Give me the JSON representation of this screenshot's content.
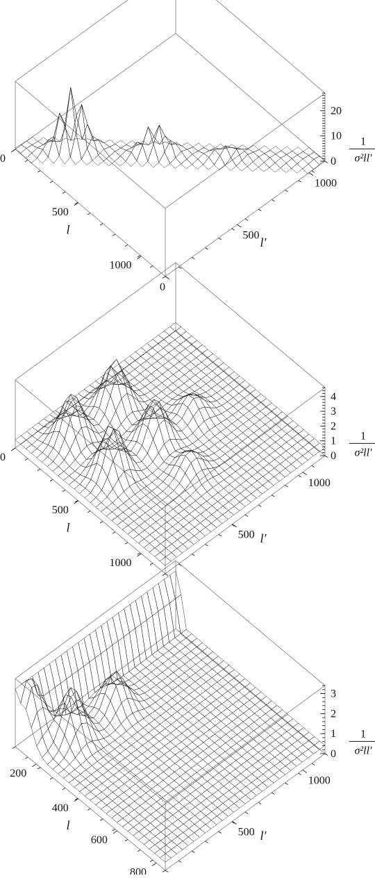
{
  "chart_data": [
    {
      "type": "surface",
      "x_axis": {
        "label": "l",
        "ticks": [
          "0",
          "500",
          "1000"
        ]
      },
      "y_axis": {
        "label": "l′",
        "ticks": [
          "0",
          "500",
          "1000"
        ]
      },
      "z_axis": {
        "label_num": "1",
        "label_den": "σ²ll′",
        "ticks": [
          "0",
          "10",
          "20"
        ],
        "zlim": [
          0,
          27
        ]
      },
      "peaks": [
        {
          "l": 220,
          "l_prime": 220,
          "value": 25
        },
        {
          "l": 540,
          "l_prime": 540,
          "value": 12
        },
        {
          "l": 820,
          "l_prime": 820,
          "value": 4
        }
      ]
    },
    {
      "type": "surface",
      "x_axis": {
        "label": "l",
        "ticks": [
          "0",
          "500",
          "1000"
        ]
      },
      "y_axis": {
        "label": "l′",
        "ticks": [
          "500",
          "1000"
        ]
      },
      "z_axis": {
        "label_num": "1",
        "label_den": "σ²ll′",
        "ticks": [
          "0",
          "1",
          "2",
          "3",
          "4"
        ],
        "zlim": [
          0,
          4.6
        ]
      },
      "peaks": [
        {
          "l": 220,
          "l_prime": 220,
          "value": 3.2
        },
        {
          "l": 540,
          "l_prime": 220,
          "value": 3.4
        },
        {
          "l": 220,
          "l_prime": 540,
          "value": 3.4
        },
        {
          "l": 540,
          "l_prime": 540,
          "value": 3.0
        },
        {
          "l": 820,
          "l_prime": 540,
          "value": 1.4
        },
        {
          "l": 540,
          "l_prime": 820,
          "value": 1.4
        }
      ]
    },
    {
      "type": "surface",
      "x_axis": {
        "label": "l",
        "ticks": [
          "200",
          "400",
          "600",
          "800"
        ]
      },
      "y_axis": {
        "label": "l′",
        "ticks": [
          "500",
          "1000"
        ]
      },
      "z_axis": {
        "label_num": "1",
        "label_den": "σ²ll′",
        "ticks": [
          "0",
          "1",
          "2",
          "3"
        ],
        "zlim": [
          0,
          3.4
        ]
      },
      "peaks": [
        {
          "l": 60,
          "l_prime": 60,
          "value": 3.1
        },
        {
          "l": 220,
          "l_prime": 220,
          "value": 2.6
        },
        {
          "l": 220,
          "l_prime": 540,
          "value": 1.8
        }
      ]
    }
  ],
  "colors": {
    "surface_low": "#4a3a8c",
    "surface_mid": "#3f8a8a",
    "surface_high": "#c9d06a",
    "box": "#8a8a8a"
  }
}
